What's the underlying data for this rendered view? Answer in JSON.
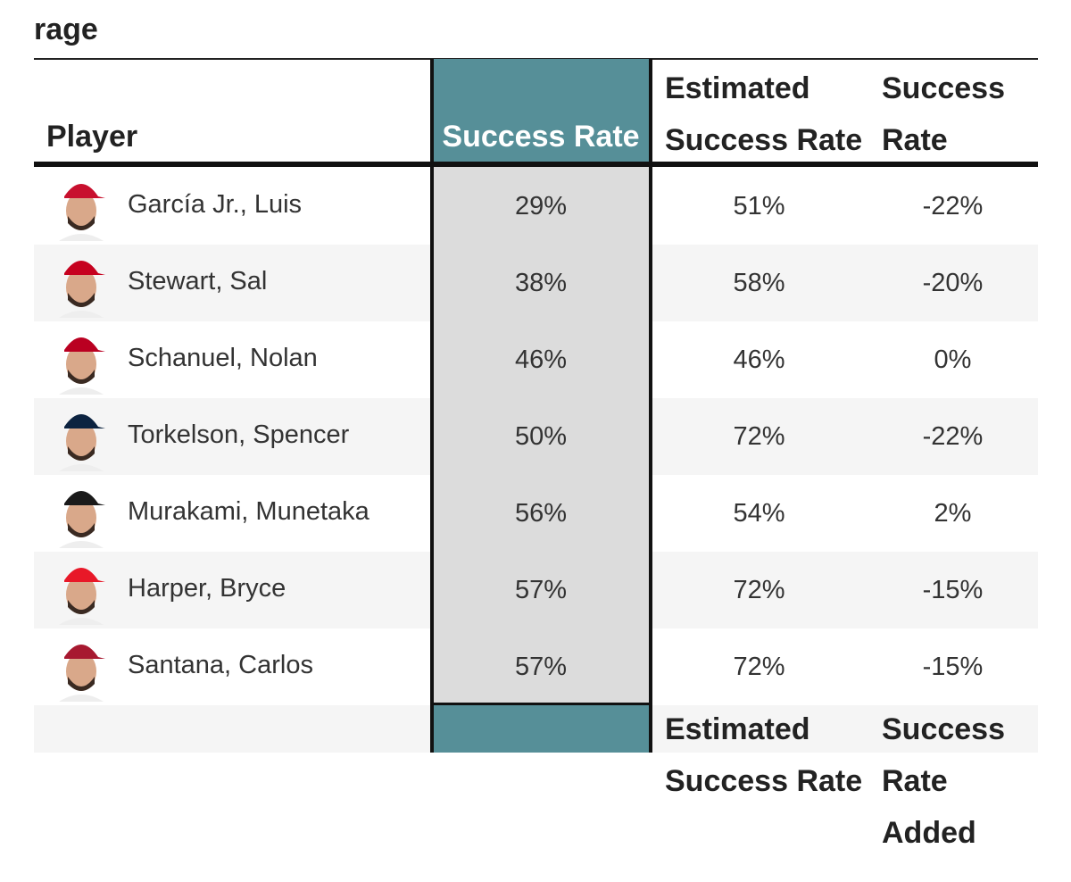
{
  "header": {
    "title": "rage"
  },
  "table": {
    "columns": [
      "Player",
      "Success Rate",
      "Estimated Success Rate",
      "Success Rate Added"
    ],
    "rows": [
      [
        "García Jr., Luis",
        "29%",
        "51%",
        "-22%"
      ],
      [
        "Stewart, Sal",
        "38%",
        "58%",
        "-20%"
      ],
      [
        "Schanuel, Nolan",
        "46%",
        "46%",
        "0%"
      ],
      [
        "Torkelson, Spencer",
        "50%",
        "72%",
        "-22%"
      ],
      [
        "Murakami, Munetaka",
        "56%",
        "54%",
        "2%"
      ],
      [
        "Harper, Bryce",
        "57%",
        "72%",
        "-15%"
      ],
      [
        "Santana, Carlos",
        "57%",
        "72%",
        "-15%"
      ]
    ],
    "footer": [
      "Estimated Success Rate",
      "Success Rate Added"
    ]
  }
}
